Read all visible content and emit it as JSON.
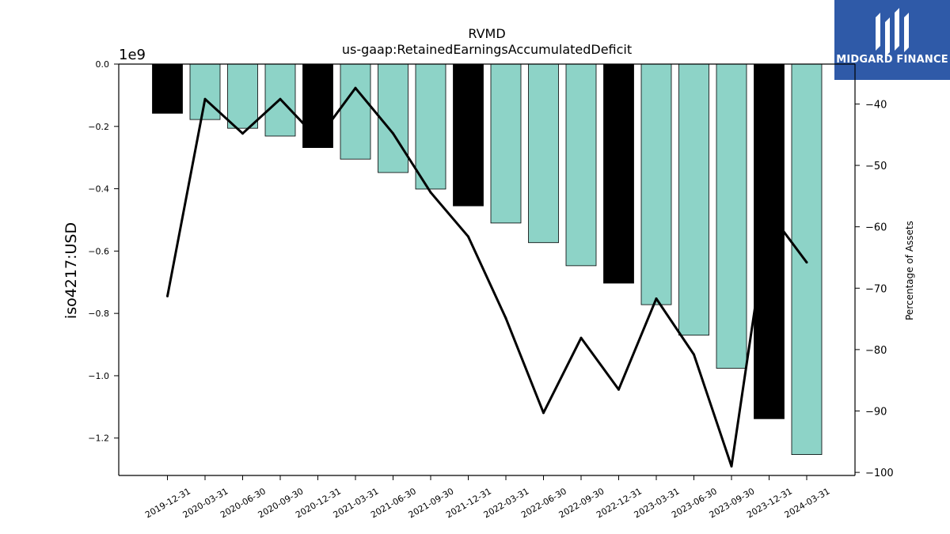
{
  "brand": {
    "name": "MIDGARD FINANCE",
    "color": "#2f5aa8"
  },
  "chart_data": {
    "type": "bar",
    "title": "RVMD",
    "subtitle": "us-gaap:RetainedEarningsAccumulatedDeficit",
    "ylabel": "iso4217:USD",
    "y_offset_label": "1e9",
    "y2label": "Percentage of Assets",
    "ylim": [
      -1.32,
      0.0
    ],
    "y_ticks": [
      "0.0",
      "−0.2",
      "−0.4",
      "−0.6",
      "−0.8",
      "−1.0",
      "−1.2"
    ],
    "y_tick_values": [
      0.0,
      -0.2,
      -0.4,
      -0.6,
      -0.8,
      -1.0,
      -1.2
    ],
    "y2lim": [
      -100.5,
      -33.5
    ],
    "y2_ticks": [
      "−40",
      "−50",
      "−60",
      "−70",
      "−80",
      "−90",
      "−100"
    ],
    "y2_tick_values": [
      -40,
      -50,
      -60,
      -70,
      -80,
      -90,
      -100
    ],
    "categories": [
      "2019-12-31",
      "2020-03-31",
      "2020-06-30",
      "2020-09-30",
      "2020-12-31",
      "2021-03-31",
      "2021-06-30",
      "2021-09-30",
      "2021-12-31",
      "2022-03-31",
      "2022-06-30",
      "2022-09-30",
      "2022-12-31",
      "2023-03-31",
      "2023-06-30",
      "2023-09-30",
      "2023-12-31",
      "2024-03-31"
    ],
    "series": [
      {
        "role": "bar",
        "axis": "left",
        "values": [
          -0.158,
          -0.178,
          -0.206,
          -0.231,
          -0.268,
          -0.305,
          -0.348,
          -0.401,
          -0.455,
          -0.51,
          -0.573,
          -0.647,
          -0.703,
          -0.772,
          -0.87,
          -0.976,
          -1.138,
          -1.253
        ],
        "colors": [
          "#000000",
          "#8dd3c7",
          "#8dd3c7",
          "#8dd3c7",
          "#000000",
          "#8dd3c7",
          "#8dd3c7",
          "#8dd3c7",
          "#000000",
          "#8dd3c7",
          "#8dd3c7",
          "#8dd3c7",
          "#000000",
          "#8dd3c7",
          "#8dd3c7",
          "#8dd3c7",
          "#000000",
          "#8dd3c7"
        ]
      },
      {
        "role": "line",
        "axis": "right",
        "color": "#000000",
        "values": [
          -71.3,
          -39.2,
          -44.8,
          -39.2,
          -45.7,
          -37.4,
          -44.8,
          -54.4,
          -61.6,
          -74.9,
          -90.3,
          -78.1,
          -86.5,
          -71.7,
          -80.8,
          -99.0,
          -57.6,
          -65.8
        ]
      }
    ],
    "grid": false
  }
}
